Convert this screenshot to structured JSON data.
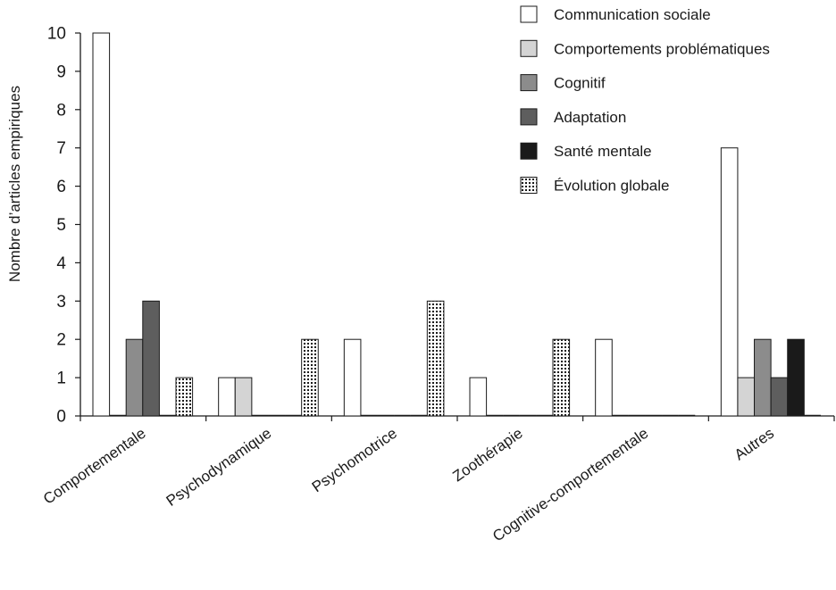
{
  "chart_data": {
    "type": "bar",
    "title": "",
    "xlabel": "",
    "ylabel": "Nombre d’articles empiriques",
    "ylim": [
      0,
      10
    ],
    "yticks": [
      0,
      1,
      2,
      3,
      4,
      5,
      6,
      7,
      8,
      9,
      10
    ],
    "grid": false,
    "legend_position": "top-right",
    "categories": [
      "Comportementale",
      "Psychodynamique",
      "Psychomotrice",
      "Zoothérapie",
      "Cognitive-comportementale",
      "Autres"
    ],
    "series": [
      {
        "name": "Communication sociale",
        "color": "#ffffff",
        "pattern": "solid",
        "values": [
          10,
          1,
          2,
          1,
          2,
          7
        ]
      },
      {
        "name": "Comportements problématiques",
        "color": "#d4d4d4",
        "pattern": "solid",
        "values": [
          0,
          1,
          0,
          0,
          0,
          1
        ]
      },
      {
        "name": "Cognitif",
        "color": "#8c8c8c",
        "pattern": "solid",
        "values": [
          2,
          0,
          0,
          0,
          0,
          2
        ]
      },
      {
        "name": "Adaptation",
        "color": "#5e5e5e",
        "pattern": "solid",
        "values": [
          3,
          0,
          0,
          0,
          0,
          1
        ]
      },
      {
        "name": "Santé mentale",
        "color": "#1a1a1a",
        "pattern": "solid",
        "values": [
          0,
          0,
          0,
          0,
          0,
          2
        ]
      },
      {
        "name": "Évolution globale",
        "color": "#ffffff",
        "pattern": "dots",
        "values": [
          1,
          2,
          3,
          2,
          0,
          0
        ]
      }
    ]
  }
}
